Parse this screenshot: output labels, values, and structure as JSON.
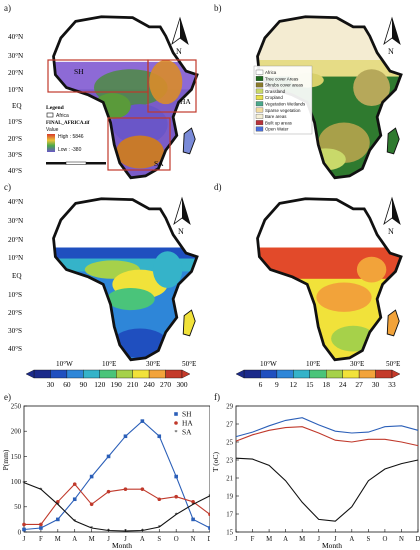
{
  "panels": {
    "a": "a)",
    "b": "b)",
    "c": "c)",
    "d": "d)",
    "e": "e)",
    "f": "f)"
  },
  "map_a": {
    "lat_ticks": [
      "40°N",
      "30°N",
      "20°N",
      "10°N",
      "EQ",
      "10°S",
      "20°S",
      "30°S",
      "40°S"
    ],
    "regions": [
      "SH",
      "HA",
      "SA"
    ],
    "legend": {
      "title": "Legend",
      "africa": "Africa",
      "layer": "FINAL_AFRICA.tif",
      "value": "Value",
      "high": "High : 5846",
      "low": "Low : -380"
    },
    "north": "N"
  },
  "map_b": {
    "north": "N",
    "legend_items": [
      {
        "label": "Africa",
        "color": "#ffffff"
      },
      {
        "label": "Tree cover Areas",
        "color": "#1e6b1e"
      },
      {
        "label": "Shrubs cover areas",
        "color": "#8a7a2b"
      },
      {
        "label": "Grassland",
        "color": "#c9d96a"
      },
      {
        "label": "Cropland",
        "color": "#e8e04a"
      },
      {
        "label": "Vegetation Wetlands",
        "color": "#4aa88c"
      },
      {
        "label": "Sparse vegetation",
        "color": "#f2dca0"
      },
      {
        "label": "Bare areas",
        "color": "#f6f0d6"
      },
      {
        "label": "Built up areas",
        "color": "#b8323a"
      },
      {
        "label": "Open Water",
        "color": "#4a6ed8"
      }
    ]
  },
  "map_c": {
    "north": "N",
    "lat_ticks": [
      "40°N",
      "30°N",
      "20°N",
      "10°N",
      "EQ",
      "10°S",
      "20°S",
      "30°S",
      "40°S"
    ],
    "lon_ticks": [
      "10°W",
      "10°E",
      "30°E",
      "50°E"
    ],
    "colorbar": [
      "30",
      "60",
      "90",
      "120",
      "190",
      "210",
      "240",
      "270",
      "300"
    ],
    "colors": [
      "#1b2a8a",
      "#1f4fbf",
      "#2e86d8",
      "#35b3c9",
      "#4ac47a",
      "#a6d14a",
      "#f1e23a",
      "#f2a33a",
      "#c43a2a"
    ]
  },
  "map_d": {
    "north": "N",
    "lon_ticks": [
      "10°W",
      "10°E",
      "30°E",
      "50°E"
    ],
    "colorbar": [
      "6",
      "9",
      "12",
      "15",
      "18",
      "24",
      "27",
      "30",
      "33"
    ],
    "colors": [
      "#1b2a8a",
      "#1f4fbf",
      "#2e86d8",
      "#35b3c9",
      "#4ac47a",
      "#a6d14a",
      "#f1e23a",
      "#f2a33a",
      "#c43a2a"
    ]
  },
  "chart_data": [
    {
      "type": "line",
      "panel": "e",
      "categories": [
        "J",
        "F",
        "M",
        "A",
        "M",
        "J",
        "J",
        "A",
        "S",
        "O",
        "N",
        "D"
      ],
      "xlabel": "Month",
      "ylabel": "P(mm)",
      "ylim": [
        0,
        250
      ],
      "yticks": [
        0,
        50,
        100,
        150,
        200,
        250
      ],
      "legend_position": "top-right",
      "series": [
        {
          "name": "SH",
          "color": "#2b5fb8",
          "marker": "square",
          "values": [
            5,
            8,
            25,
            65,
            110,
            150,
            190,
            220,
            190,
            110,
            25,
            8
          ]
        },
        {
          "name": "HA",
          "color": "#c0392b",
          "marker": "circle",
          "values": [
            15,
            15,
            60,
            95,
            55,
            80,
            85,
            85,
            65,
            70,
            60,
            35
          ]
        },
        {
          "name": "SA",
          "color": "#111111",
          "marker": "star",
          "values": [
            98,
            85,
            55,
            22,
            8,
            3,
            2,
            3,
            10,
            35,
            55,
            72
          ]
        }
      ]
    },
    {
      "type": "line",
      "panel": "f",
      "categories": [
        "J",
        "F",
        "M",
        "A",
        "M",
        "J",
        "J",
        "A",
        "S",
        "O",
        "N",
        "D"
      ],
      "xlabel": "Month",
      "ylabel": "T (oC)",
      "ylim": [
        15,
        29
      ],
      "yticks": [
        15,
        17,
        19,
        21,
        23,
        25,
        27,
        29
      ],
      "series": [
        {
          "color": "#2b5fb8",
          "values": [
            25.6,
            26.1,
            26.8,
            27.4,
            27.7,
            26.9,
            26.2,
            26.0,
            26.1,
            26.7,
            26.8,
            26.3
          ]
        },
        {
          "color": "#c0392b",
          "values": [
            25.1,
            25.8,
            26.3,
            26.6,
            26.7,
            26.0,
            25.2,
            25.0,
            25.3,
            25.3,
            25.0,
            24.6
          ]
        },
        {
          "color": "#111111",
          "values": [
            23.2,
            23.1,
            22.4,
            20.7,
            18.3,
            16.4,
            16.2,
            17.8,
            20.7,
            22.0,
            22.6,
            23.0
          ]
        }
      ]
    }
  ]
}
